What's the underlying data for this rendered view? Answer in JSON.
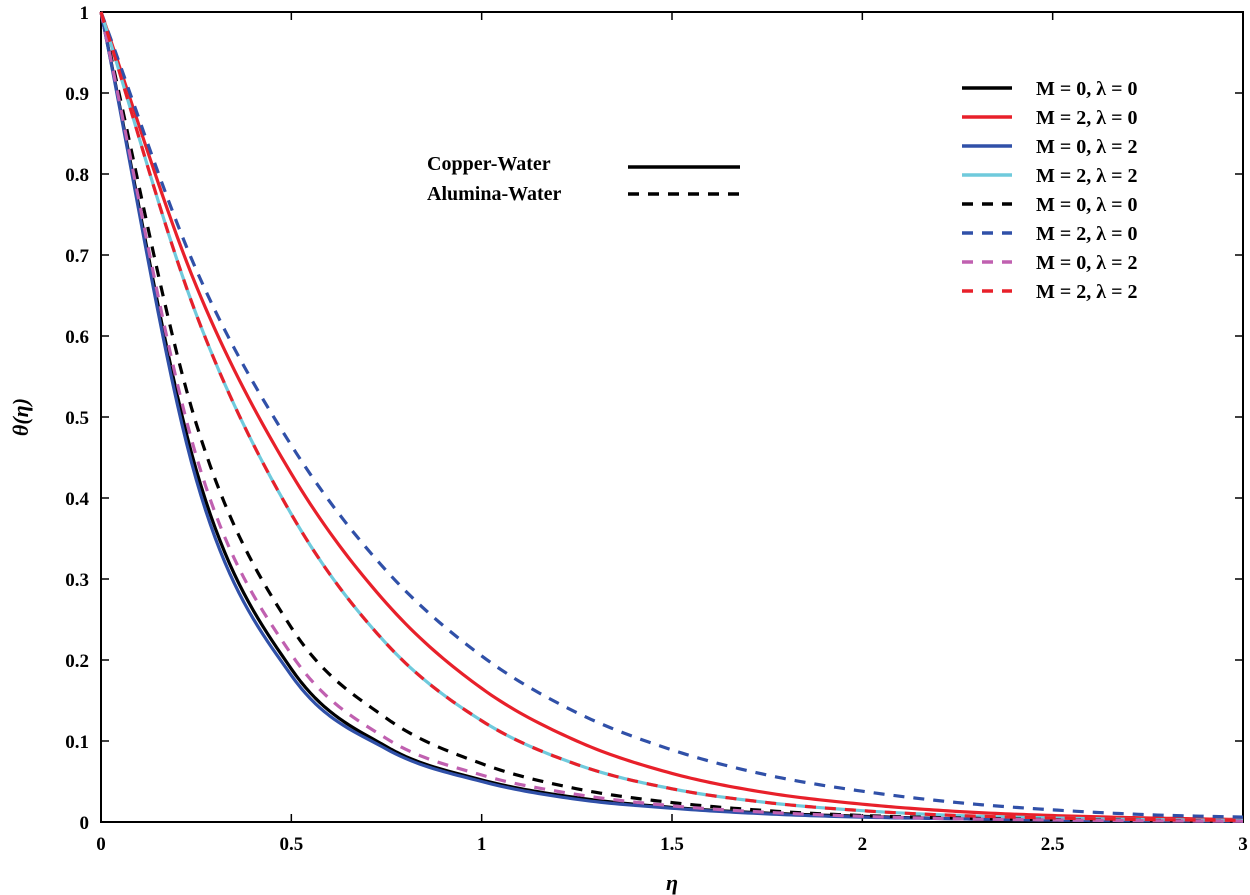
{
  "chart_data": {
    "type": "line",
    "title": "",
    "xlabel": "η",
    "ylabel": "θ(η)",
    "xlim": [
      0,
      3
    ],
    "ylim": [
      0,
      1
    ],
    "grid": false,
    "legend_position": "top-right",
    "xticks": [
      {
        "value": 0,
        "label": "0"
      },
      {
        "value": 0.5,
        "label": "0.5"
      },
      {
        "value": 1,
        "label": "1"
      },
      {
        "value": 1.5,
        "label": "1.5"
      },
      {
        "value": 2,
        "label": "2"
      },
      {
        "value": 2.5,
        "label": "2.5"
      },
      {
        "value": 3,
        "label": "3"
      }
    ],
    "yticks": [
      {
        "value": 0,
        "label": "0"
      },
      {
        "value": 0.1,
        "label": "0.1"
      },
      {
        "value": 0.2,
        "label": "0.2"
      },
      {
        "value": 0.3,
        "label": "0.3"
      },
      {
        "value": 0.4,
        "label": "0.4"
      },
      {
        "value": 0.5,
        "label": "0.5"
      },
      {
        "value": 0.6,
        "label": "0.6"
      },
      {
        "value": 0.7,
        "label": "0.7"
      },
      {
        "value": 0.8,
        "label": "0.8"
      },
      {
        "value": 0.9,
        "label": "0.9"
      },
      {
        "value": 1,
        "label": "1"
      }
    ],
    "x": [
      0,
      0.25,
      0.5,
      0.75,
      1,
      1.25,
      1.5,
      1.75,
      2,
      2.25,
      2.5,
      2.75,
      3
    ],
    "style_legend": [
      {
        "label": "Copper-Water",
        "style": "solid"
      },
      {
        "label": "Alumina-Water",
        "style": "dashed"
      }
    ],
    "series": [
      {
        "name": "M = 0, λ = 0",
        "fluid": "Copper-Water",
        "style": "solid",
        "color": "#000000",
        "values": [
          1,
          0.435,
          0.189,
          0.093,
          0.052,
          0.03,
          0.018,
          0.011,
          0.007,
          0.004,
          0.0025,
          0.0015,
          0.001
        ]
      },
      {
        "name": "M = 2, λ = 0",
        "fluid": "Copper-Water",
        "style": "solid",
        "color": "#e8202a",
        "values": [
          1,
          0.662,
          0.43,
          0.27,
          0.165,
          0.1,
          0.06,
          0.036,
          0.022,
          0.013,
          0.008,
          0.005,
          0.003
        ]
      },
      {
        "name": "M = 0, λ = 2",
        "fluid": "Copper-Water",
        "style": "solid",
        "color": "#3050a8",
        "values": [
          1,
          0.423,
          0.181,
          0.09,
          0.05,
          0.028,
          0.017,
          0.01,
          0.006,
          0.004,
          0.0023,
          0.0014,
          0.0009
        ]
      },
      {
        "name": "M = 2, λ = 2",
        "fluid": "Copper-Water",
        "style": "solid",
        "color": "#6fcadc",
        "values": [
          1,
          0.627,
          0.38,
          0.22,
          0.125,
          0.071,
          0.041,
          0.024,
          0.014,
          0.008,
          0.005,
          0.003,
          0.002
        ]
      },
      {
        "name": "M = 0, λ = 0",
        "fluid": "Alumina-Water",
        "style": "dashed",
        "color": "#000000",
        "values": [
          1,
          0.492,
          0.24,
          0.128,
          0.072,
          0.041,
          0.024,
          0.014,
          0.008,
          0.005,
          0.003,
          0.002,
          0.001
        ]
      },
      {
        "name": "M = 2, λ = 0",
        "fluid": "Alumina-Water",
        "style": "dashed",
        "color": "#3050a8",
        "values": [
          1,
          0.682,
          0.465,
          0.31,
          0.205,
          0.135,
          0.089,
          0.058,
          0.038,
          0.024,
          0.015,
          0.009,
          0.006
        ]
      },
      {
        "name": "M = 0, λ = 2",
        "fluid": "Alumina-Water",
        "style": "dashed",
        "color": "#c060b0",
        "values": [
          1,
          0.452,
          0.207,
          0.103,
          0.058,
          0.034,
          0.02,
          0.012,
          0.007,
          0.004,
          0.0026,
          0.0016,
          0.001
        ]
      },
      {
        "name": "M = 2, λ = 2",
        "fluid": "Alumina-Water",
        "style": "dashed",
        "color": "#e8202a",
        "values": [
          1,
          0.627,
          0.38,
          0.22,
          0.125,
          0.071,
          0.041,
          0.024,
          0.014,
          0.008,
          0.005,
          0.003,
          0.002
        ]
      }
    ]
  }
}
